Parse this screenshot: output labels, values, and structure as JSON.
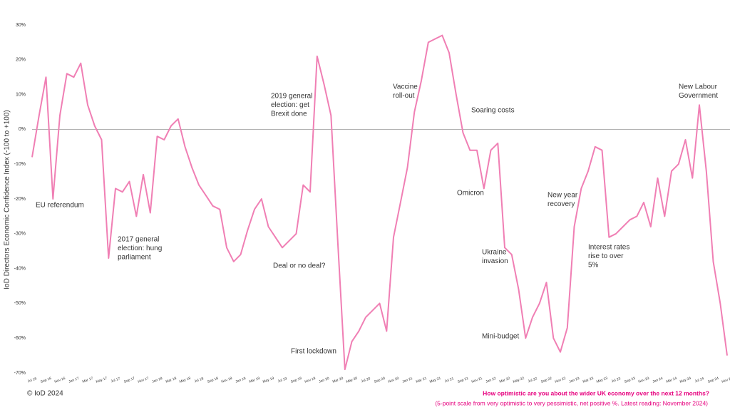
{
  "chart_data": {
    "type": "line",
    "y_label": "IoD Directors Economic Confidence Index (-100 to +100)",
    "categories": [
      "Jul 16",
      null,
      "Sep 16",
      null,
      "Nov 16",
      null,
      "Jan 17",
      null,
      "Mar 17",
      null,
      "May 17",
      null,
      "Jul 17",
      null,
      "Sep 17",
      null,
      "Nov 17",
      null,
      "Jan 18",
      null,
      "Mar 18",
      null,
      "May 18",
      null,
      "Jul 18",
      null,
      "Sep 18",
      null,
      "Nov 18",
      null,
      "Jan 19",
      null,
      "Mar 19",
      null,
      "May 19",
      null,
      "Jul 19",
      null,
      "Sep 19",
      null,
      "Nov 19",
      null,
      "Jan 20",
      null,
      "Mar 20",
      null,
      "May 20",
      null,
      "Jul 20",
      null,
      "Sep 20",
      null,
      "Nov 20",
      null,
      "Jan 21",
      null,
      "Mar 21",
      null,
      "May 21",
      null,
      "Jul 21",
      null,
      "Sep 21",
      null,
      "Nov 21",
      null,
      "Jan 22",
      null,
      "Mar 22",
      null,
      "May 22",
      null,
      "Jul 22",
      null,
      "Sep 22",
      null,
      "Nov 22",
      null,
      "Jan 23",
      null,
      "Mar 23",
      null,
      "May 23",
      null,
      "Jul 23",
      null,
      "Sep 23",
      null,
      "Nov 23",
      null,
      "Jan 24",
      null,
      "Mar 24",
      null,
      "May 24",
      null,
      "Jul 24",
      null,
      "Sep 24",
      null,
      "Nov 24"
    ],
    "series": [
      {
        "color": "#f07fb4",
        "values": [
          -8,
          4,
          15,
          -20,
          4,
          16,
          15,
          19,
          7,
          1,
          -3,
          -37,
          -17,
          -18,
          -15,
          -25,
          -13,
          -24,
          -2,
          -3,
          1,
          3,
          -5,
          -11,
          -16,
          -19,
          -22,
          -23,
          -34,
          -38,
          -36,
          -29,
          -23,
          -20,
          -28,
          -31,
          -34,
          -32,
          -30,
          -16,
          -18,
          21,
          13,
          4,
          -33,
          -69,
          -61,
          -58,
          -54,
          -52,
          -50,
          -58,
          -31,
          -21,
          -11,
          5,
          14,
          25,
          26,
          27,
          22,
          10,
          -1,
          -6,
          -6,
          -17,
          -6,
          -4,
          -34,
          -36,
          -46,
          -60,
          -54,
          -50,
          -44,
          -60,
          -64,
          -57,
          -28,
          -17,
          -12,
          -5,
          -6,
          -31,
          -30,
          -28,
          -26,
          -25,
          -21,
          -28,
          -14,
          -25,
          -12,
          -10,
          -3,
          -14,
          7,
          -12,
          -38,
          -50,
          -65
        ]
      }
    ],
    "ylim": [
      -70,
      30
    ],
    "yticks": [
      {
        "value": 30,
        "label": "30%"
      },
      {
        "value": 20,
        "label": "20%"
      },
      {
        "value": 10,
        "label": "10%"
      },
      {
        "value": 0,
        "label": "0%"
      },
      {
        "value": -10,
        "label": "-10%"
      },
      {
        "value": -20,
        "label": "-20%"
      },
      {
        "value": -30,
        "label": "-30%"
      },
      {
        "value": -40,
        "label": "-40%"
      },
      {
        "value": -50,
        "label": "-50%"
      },
      {
        "value": -60,
        "label": "-60%"
      },
      {
        "value": -70,
        "label": "-70%"
      }
    ],
    "annotations": [
      [
        "EU referendum"
      ],
      [
        "2017 general",
        "election: hung",
        "parliament"
      ],
      [
        "2019 general",
        "election: get",
        "Brexit done"
      ],
      [
        "Deal or no deal?"
      ],
      [
        "First lockdown"
      ],
      [
        "Vaccine",
        "roll-out"
      ],
      [
        "Soaring costs"
      ],
      [
        "Omicron"
      ],
      [
        "Ukraine",
        "invasion"
      ],
      [
        "Mini-budget"
      ],
      [
        "New year",
        "recovery"
      ],
      [
        "Interest rates",
        "rise to over",
        "5%"
      ],
      [
        "New Labour",
        "Government"
      ]
    ],
    "copyright": "© IoD 2024",
    "question": "How optimistic are you about the wider UK economy over the next 12 months?",
    "note": "(5-point scale from very optimistic to very pessimistic, net positive %. Latest reading: November 2024)"
  }
}
